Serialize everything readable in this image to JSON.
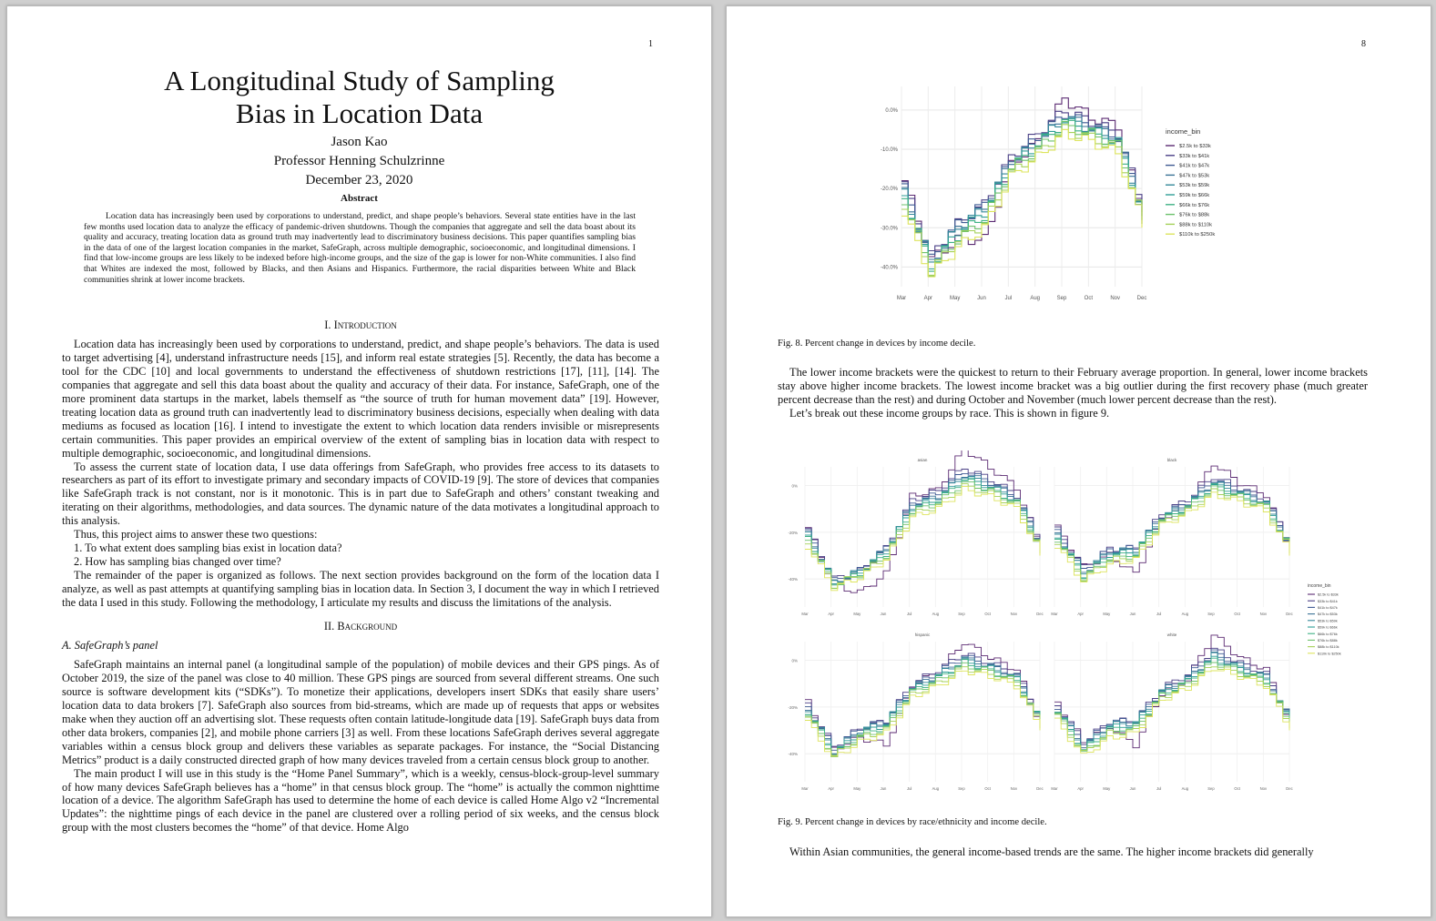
{
  "page1": {
    "number": "1",
    "title_line1": "A Longitudinal Study of Sampling",
    "title_line2": "Bias in Location Data",
    "author": "Jason Kao",
    "advisor": "Professor Henning Schulzrinne",
    "date": "December 23, 2020",
    "abstract_heading": "Abstract",
    "abstract": "Location data has increasingly been used by corporations to understand, predict, and shape people’s behaviors. Several state entities have in the last few months used location data to analyze the efficacy of pandemic-driven shutdowns. Though the companies that aggregate and sell the data boast about its quality and accuracy, treating location data as ground truth may inadvertently lead to discriminatory business decisions. This paper quantifies sampling bias in the data of one of the largest location companies in the market, SafeGraph, across multiple demographic, socioeconomic, and longitudinal dimensions. I find that low-income groups are less likely to be indexed before high-income groups, and the size of the gap is lower for non-White communities. I also find that Whites are indexed the most, followed by Blacks, and then Asians and Hispanics. Furthermore, the racial disparities between White and Black communities shrink at lower income brackets.",
    "sec1_num": "I.",
    "sec1_title": "Introduction",
    "intro_p1": "Location data has increasingly been used by corporations to understand, predict, and shape people’s behaviors. The data is used to target advertising [4], understand infrastructure needs [15], and inform real estate strategies [5]. Recently, the data has become a tool for the CDC [10] and local governments to understand the effectiveness of shutdown restrictions [17], [11], [14]. The companies that aggregate and sell this data boast about the quality and accuracy of their data. For instance, SafeGraph, one of the more prominent data startups in the market, labels themself as “the source of truth for human movement data” [19]. However, treating location data as ground truth can inadvertently lead to discriminatory business decisions, especially when dealing with data mediums as focused as location [16]. I intend to investigate the extent to which location data renders invisible or misrepresents certain communities. This paper provides an empirical overview of the extent of sampling bias in location data with respect to multiple demographic, socioeconomic, and longitudinal dimensions.",
    "intro_p2": "To assess the current state of location data, I use data offerings from SafeGraph, who provides free access to its datasets to researchers as part of its effort to investigate primary and secondary impacts of COVID-19 [9]. The store of devices that companies like SafeGraph track is not constant, nor is it monotonic. This is in part due to SafeGraph and others’ constant tweaking and iterating on their algorithms, methodologies, and data sources. The dynamic nature of the data motivates a longitudinal approach to this analysis.",
    "intro_p3": "Thus, this project aims to answer these two questions:",
    "q1": "1. To what extent does sampling bias exist in location data?",
    "q2": "2. How has sampling bias changed over time?",
    "intro_p4": "The remainder of the paper is organized as follows. The next section provides background on the form of the location data I analyze, as well as past attempts at quantifying sampling bias in location data. In Section 3, I document the way in which I retrieved the data I used in this study. Following the methodology, I articulate my results and discuss the limitations of the analysis.",
    "sec2_num": "II.",
    "sec2_title": "Background",
    "subsec_a": "A. SafeGraph’s panel",
    "bg_p1": "SafeGraph maintains an internal panel (a longitudinal sample of the population) of mobile devices and their GPS pings. As of October 2019, the size of the panel was close to 40 million. These GPS pings are sourced from several different streams. One such source is software development kits (“SDKs”). To monetize their applications, developers insert SDKs that easily share users’ location data to data brokers [7]. SafeGraph also sources from bid-streams, which are made up of requests that apps or websites make when they auction off an advertising slot. These requests often contain latitude-longitude data [19]. SafeGraph buys data from other data brokers, companies [2], and mobile phone carriers [3] as well. From these locations SafeGraph derives several aggregate variables within a census block group and delivers these variables as separate packages. For instance, the “Social Distancing Metrics” product is a daily constructed directed graph of how many devices traveled from a certain census block group to another.",
    "bg_p2": "The main product I will use in this study is the “Home Panel Summary”, which is a weekly, census-block-group-level summary of how many devices SafeGraph believes has a “home” in that census block group. The “home” is actually the common nighttime location of a device. The algorithm SafeGraph has used to determine the home of each device is called Home Algo v2 “Incremental Updates”: the nighttime pings of each device in the panel are clustered over a rolling period of six weeks, and the census block group with the most clusters becomes the “home” of that device. Home Algo"
  },
  "page2": {
    "number": "8",
    "fig8_caption": "Fig. 8.  Percent change in devices by income decile.",
    "para1": "The lower income brackets were the quickest to return to their February average proportion. In general, lower income brackets stay above higher income brackets. The lowest income bracket was a big outlier during the first recovery phase (much greater percent decrease than the rest) and during October and November (much lower percent decrease than the rest).",
    "para2": "Let’s break out these income groups by race. This is shown in figure 9.",
    "fig9_caption": "Fig. 9.  Percent change in devices by race/ethnicity and income decile.",
    "para3": "Within Asian communities, the general income-based trends are the same. The higher income brackets did generally"
  },
  "chart_data": [
    {
      "type": "line",
      "figure": "Fig. 8",
      "x": [
        "Mar",
        "Apr",
        "May",
        "Jun",
        "Jul",
        "Aug",
        "Sep",
        "Oct",
        "Nov",
        "Dec"
      ],
      "y_ticks": [
        "0.0%",
        "-10.0%",
        "-20.0%",
        "-30.0%",
        "-40.0%"
      ],
      "ylim": [
        -45,
        6
      ],
      "legend_title": "income_bin",
      "legend_position": "right",
      "grid": true,
      "colors": [
        "#5b2a72",
        "#4a3f86",
        "#3f5a93",
        "#3a7296",
        "#34889a",
        "#2f9e96",
        "#3fb185",
        "#6cc16c",
        "#a5d15a",
        "#dde45d"
      ],
      "series": [
        {
          "name": "$2.5k to $33k",
          "values": [
            -18,
            -38,
            -33,
            -33,
            -14,
            -8,
            3,
            -2,
            -4,
            -29
          ]
        },
        {
          "name": "$33k to $41k",
          "values": [
            -19,
            -37,
            -29,
            -24,
            -12,
            -6,
            0,
            -3,
            -6,
            -26
          ]
        },
        {
          "name": "$41k to $47k",
          "values": [
            -20,
            -38,
            -29,
            -24,
            -13,
            -7,
            -1,
            -4,
            -7,
            -27
          ]
        },
        {
          "name": "$47k to $53k",
          "values": [
            -21,
            -39,
            -30,
            -25,
            -13,
            -8,
            -2,
            -4,
            -7,
            -27
          ]
        },
        {
          "name": "$53k to $59k",
          "values": [
            -21,
            -39,
            -30,
            -25,
            -14,
            -8,
            -2,
            -5,
            -8,
            -28
          ]
        },
        {
          "name": "$59k to $66k",
          "values": [
            -22,
            -40,
            -31,
            -26,
            -14,
            -9,
            -3,
            -5,
            -8,
            -28
          ]
        },
        {
          "name": "$66k to $76k",
          "values": [
            -22,
            -40,
            -32,
            -27,
            -15,
            -9,
            -3,
            -6,
            -9,
            -28
          ]
        },
        {
          "name": "$76k to $88k",
          "values": [
            -23,
            -41,
            -33,
            -28,
            -15,
            -10,
            -4,
            -6,
            -9,
            -29
          ]
        },
        {
          "name": "$88k to $110k",
          "values": [
            -24,
            -41,
            -33,
            -29,
            -16,
            -11,
            -5,
            -7,
            -10,
            -29
          ]
        },
        {
          "name": "$110k to $250k",
          "values": [
            -26,
            -42,
            -35,
            -30,
            -17,
            -12,
            -6,
            -8,
            -11,
            -30
          ]
        }
      ]
    },
    {
      "type": "line",
      "figure": "Fig. 9",
      "panels": [
        "asian",
        "black",
        "hispanic",
        "white"
      ],
      "x": [
        "Mar",
        "Apr",
        "May",
        "Jun",
        "Jul",
        "Aug",
        "Sep",
        "Oct",
        "Nov",
        "Dec"
      ],
      "y_ticks": [
        "0%",
        "-20%",
        "-40%"
      ],
      "legend_title": "income_bin",
      "legend_position": "right",
      "legend_entries": [
        "$2.5k to $33k",
        "$33k to $41k",
        "$41k to $47k",
        "$47k to $53k",
        "$53k to $59k",
        "$59k to $66k",
        "$66k to $76k",
        "$76k to $88k",
        "$88k to $110k",
        "$110k to $250k"
      ]
    }
  ]
}
